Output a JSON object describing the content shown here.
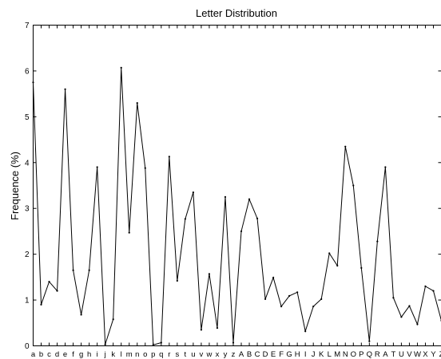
{
  "chart_data": {
    "type": "line",
    "title": "Letter Distribution",
    "xlabel": "",
    "ylabel": "Frequence (%)",
    "ylim": [
      0,
      7
    ],
    "yticks": [
      "0",
      "1",
      "2",
      "3",
      "4",
      "5",
      "6",
      "7"
    ],
    "grid": false,
    "categories": [
      "a",
      "b",
      "c",
      "d",
      "e",
      "f",
      "g",
      "h",
      "i",
      "j",
      "k",
      "l",
      "m",
      "n",
      "o",
      "p",
      "q",
      "r",
      "s",
      "t",
      "u",
      "v",
      "w",
      "x",
      "y",
      "z",
      "A",
      "B",
      "C",
      "D",
      "E",
      "F",
      "G",
      "H",
      "I",
      "J",
      "K",
      "L",
      "M",
      "N",
      "O",
      "P",
      "Q",
      "R",
      "A",
      "T",
      "U",
      "V",
      "W",
      "X",
      "Y",
      "Z"
    ],
    "series": [
      {
        "values": [
          5.75,
          0.9,
          1.4,
          1.2,
          5.6,
          1.65,
          0.68,
          1.65,
          3.9,
          0.03,
          0.58,
          6.07,
          2.47,
          5.3,
          3.88,
          0.02,
          0.07,
          4.13,
          1.42,
          2.77,
          3.35,
          0.35,
          1.57,
          0.39,
          3.25,
          0.07,
          2.5,
          3.2,
          2.78,
          1.02,
          1.49,
          0.86,
          1.09,
          1.17,
          0.32,
          0.86,
          1.02,
          2.02,
          1.75,
          4.35,
          3.5,
          1.7,
          0.1,
          2.28,
          3.9,
          1.05,
          0.63,
          0.87,
          0.47,
          1.3,
          1.2,
          0.55
        ]
      }
    ]
  }
}
